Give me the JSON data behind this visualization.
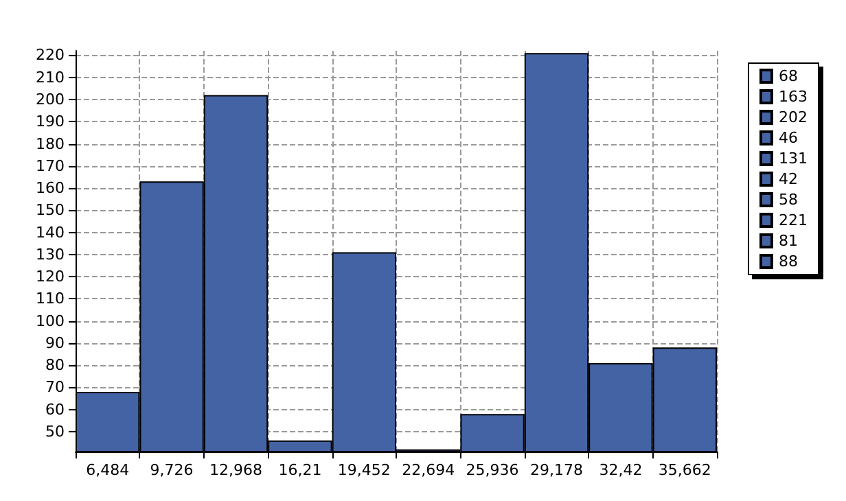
{
  "chart_data": {
    "type": "bar",
    "categories": [
      "6,484",
      "9,726",
      "12,968",
      "16,21",
      "19,452",
      "22,694",
      "25,936",
      "29,178",
      "32,42",
      "35,662"
    ],
    "series": [
      {
        "name": "68",
        "color": "#4463a4",
        "values": [
          68,
          null,
          null,
          null,
          null,
          null,
          null,
          null,
          null,
          null
        ]
      },
      {
        "name": "163",
        "color": "#4463a4",
        "values": [
          null,
          163,
          null,
          null,
          null,
          null,
          null,
          null,
          null,
          null
        ]
      },
      {
        "name": "202",
        "color": "#4463a4",
        "values": [
          null,
          null,
          202,
          null,
          null,
          null,
          null,
          null,
          null,
          null
        ]
      },
      {
        "name": "46",
        "color": "#4463a4",
        "values": [
          null,
          null,
          null,
          46,
          null,
          null,
          null,
          null,
          null,
          null
        ]
      },
      {
        "name": "131",
        "color": "#4463a4",
        "values": [
          null,
          null,
          null,
          null,
          131,
          null,
          null,
          null,
          null,
          null
        ]
      },
      {
        "name": "42",
        "color": "#4463a4",
        "values": [
          null,
          null,
          null,
          null,
          null,
          42,
          null,
          null,
          null,
          null
        ]
      },
      {
        "name": "58",
        "color": "#4463a4",
        "values": [
          null,
          null,
          null,
          null,
          null,
          null,
          58,
          null,
          null,
          null
        ]
      },
      {
        "name": "221",
        "color": "#4463a4",
        "values": [
          null,
          null,
          null,
          null,
          null,
          null,
          null,
          221,
          null,
          null
        ]
      },
      {
        "name": "81",
        "color": "#4463a4",
        "values": [
          null,
          null,
          null,
          null,
          null,
          null,
          null,
          null,
          81,
          null
        ]
      },
      {
        "name": "88",
        "color": "#4463a4",
        "values": [
          null,
          null,
          null,
          null,
          null,
          null,
          null,
          null,
          null,
          88
        ]
      }
    ],
    "stacked": true,
    "ylim": [
      41,
      222
    ],
    "yticks": [
      50,
      60,
      70,
      80,
      90,
      100,
      110,
      120,
      130,
      140,
      150,
      160,
      170,
      180,
      190,
      200,
      210,
      220
    ],
    "grid": true,
    "legend": "right"
  }
}
